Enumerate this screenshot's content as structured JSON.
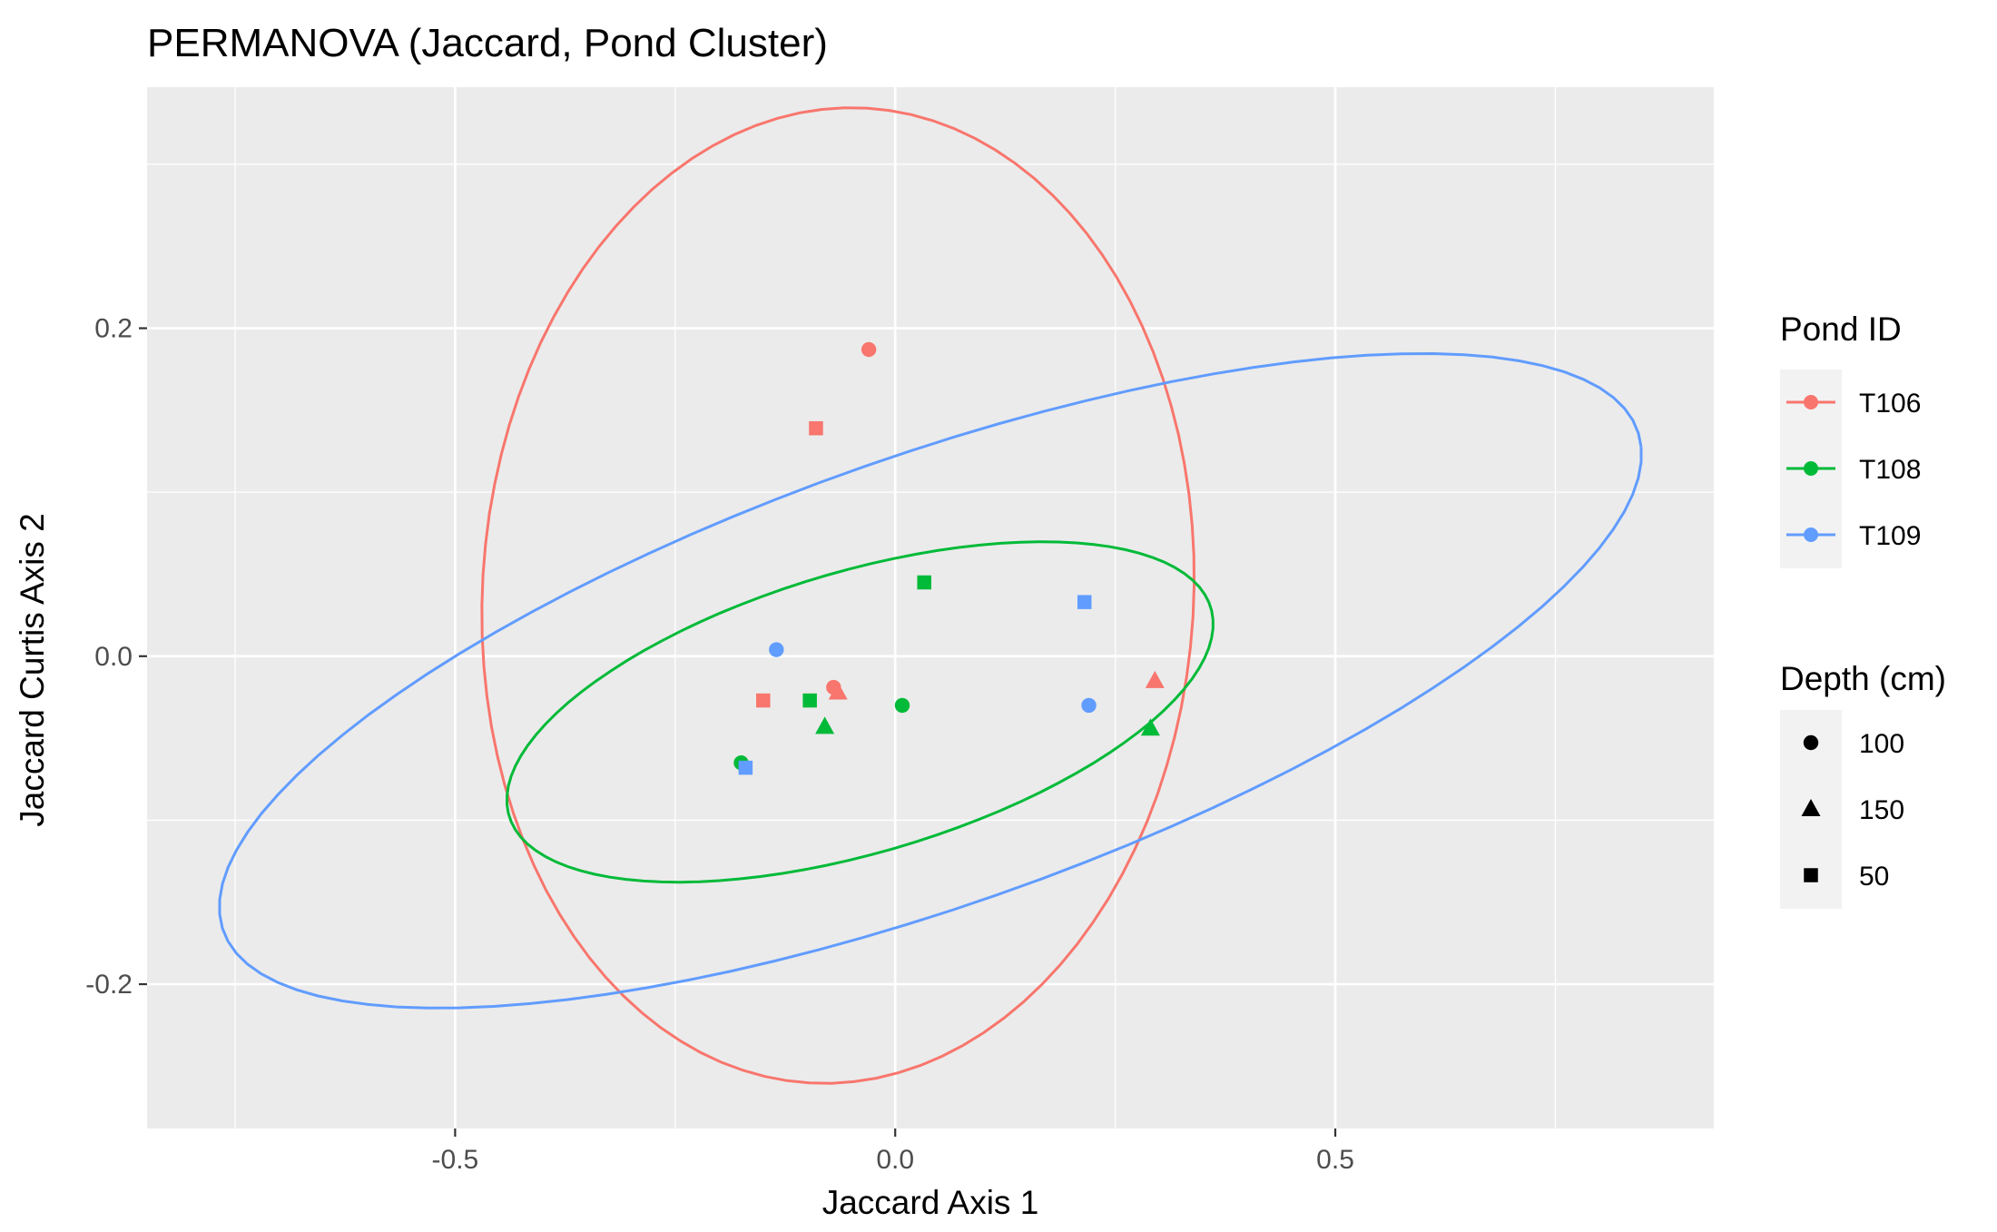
{
  "chart_data": {
    "type": "scatter",
    "title": "PERMANOVA (Jaccard, Pond Cluster)",
    "xlabel": "Jaccard Axis 1",
    "ylabel": "Jaccard Curtis Axis 2",
    "xlim": [
      -0.85,
      0.93
    ],
    "ylim": [
      -0.288,
      0.347
    ],
    "x_ticks": [
      -0.5,
      0.0,
      0.5
    ],
    "x_tick_labels": [
      "-0.5",
      "0.0",
      "0.5"
    ],
    "y_ticks": [
      -0.2,
      0.0,
      0.2
    ],
    "y_tick_labels": [
      "-0.2",
      "0.0",
      "0.2"
    ],
    "grid": true,
    "legend_position": "right",
    "color_legend": {
      "title": "Pond ID",
      "entries": [
        {
          "label": "T106",
          "color": "#F8766D"
        },
        {
          "label": "T108",
          "color": "#00BA38"
        },
        {
          "label": "T109",
          "color": "#619CFF"
        }
      ]
    },
    "shape_legend": {
      "title": "Depth (cm)",
      "entries": [
        {
          "label": "100",
          "shape": "circle"
        },
        {
          "label": "150",
          "shape": "triangle"
        },
        {
          "label": "50",
          "shape": "square"
        }
      ]
    },
    "series": [
      {
        "name": "T106",
        "color": "#F8766D",
        "points": [
          {
            "x": -0.03,
            "y": 0.187,
            "depth": "100"
          },
          {
            "x": -0.09,
            "y": 0.139,
            "depth": "50"
          },
          {
            "x": -0.07,
            "y": -0.019,
            "depth": "100"
          },
          {
            "x": -0.065,
            "y": -0.022,
            "depth": "150"
          },
          {
            "x": -0.15,
            "y": -0.027,
            "depth": "50"
          },
          {
            "x": 0.295,
            "y": -0.015,
            "depth": "150"
          }
        ],
        "ellipse": {
          "cx": -0.065,
          "cy": 0.037,
          "rx": 0.405,
          "ry": 0.297,
          "angle_deg": 3.5
        }
      },
      {
        "name": "T108",
        "color": "#00BA38",
        "points": [
          {
            "x": 0.033,
            "y": 0.045,
            "depth": "50"
          },
          {
            "x": -0.097,
            "y": -0.027,
            "depth": "50"
          },
          {
            "x": 0.008,
            "y": -0.03,
            "depth": "100"
          },
          {
            "x": -0.08,
            "y": -0.043,
            "depth": "150"
          },
          {
            "x": 0.29,
            "y": -0.044,
            "depth": "150"
          },
          {
            "x": -0.175,
            "y": -0.065,
            "depth": "100"
          }
        ],
        "ellipse": {
          "cx": -0.04,
          "cy": -0.034,
          "rx": 0.405,
          "ry": 0.088,
          "angle_deg": 8
        }
      },
      {
        "name": "T109",
        "color": "#619CFF",
        "points": [
          {
            "x": 0.215,
            "y": 0.033,
            "depth": "50"
          },
          {
            "x": -0.135,
            "y": 0.004,
            "depth": "100"
          },
          {
            "x": 0.22,
            "y": -0.03,
            "depth": "100"
          },
          {
            "x": -0.17,
            "y": -0.068,
            "depth": "50"
          }
        ],
        "ellipse": {
          "cx": 0.04,
          "cy": -0.015,
          "rx": 0.82,
          "ry": 0.142,
          "angle_deg": 10
        }
      }
    ]
  }
}
